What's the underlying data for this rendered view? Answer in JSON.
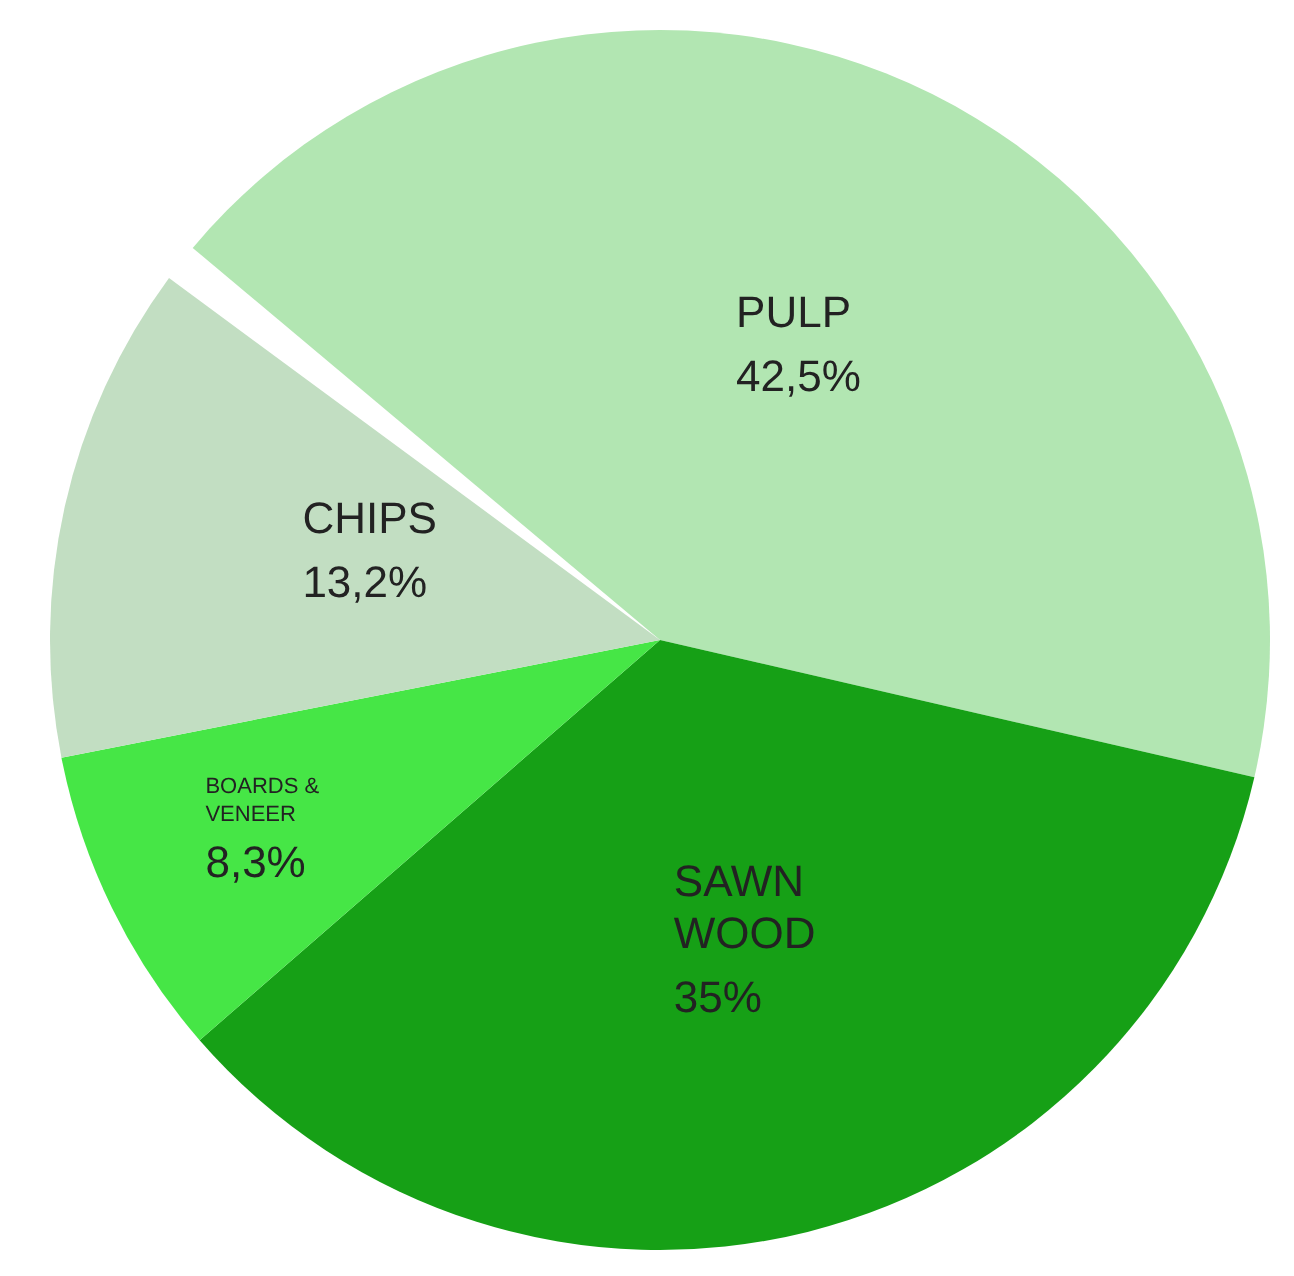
{
  "chart_data": {
    "type": "pie",
    "categories": [
      "PULP",
      "SAWN WOOD",
      "BOARDS & VENEER",
      "CHIPS"
    ],
    "values": [
      42.5,
      35,
      8.3,
      13.2
    ],
    "colors": [
      "#b2e6b2",
      "#16a016",
      "#46e646",
      "#c2dec2"
    ],
    "value_labels": [
      "42,5%",
      "35%",
      "8,3%",
      "13,2%"
    ]
  }
}
